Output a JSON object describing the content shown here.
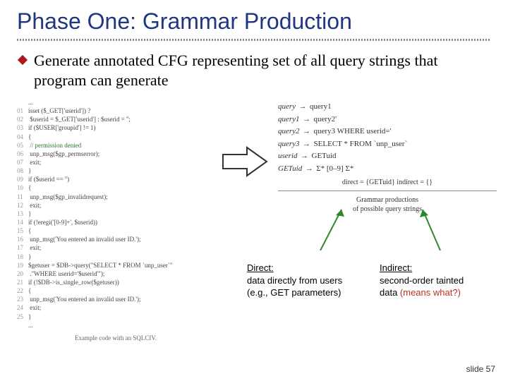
{
  "title": "Phase One: Grammar Production",
  "title_color": "#203780",
  "bullet": {
    "text": "Generate annotated CFG representing set of all query strings that program can generate",
    "icon_fill": "#b01818"
  },
  "code": {
    "lines": [
      {
        "n": "",
        "t": "..."
      },
      {
        "n": "01",
        "t": "isset ($_GET['userid']) ?"
      },
      {
        "n": "02",
        "t": "    $userid = $_GET['userid'] : $userid = '';"
      },
      {
        "n": "03",
        "t": "if ($USER['groupid'] != 1)"
      },
      {
        "n": "04",
        "t": "{"
      },
      {
        "n": "05",
        "t": "    // permission denied",
        "comment": true
      },
      {
        "n": "06",
        "t": "    unp_msg($gp_permserror);"
      },
      {
        "n": "07",
        "t": "    exit;"
      },
      {
        "n": "08",
        "t": "}"
      },
      {
        "n": "09",
        "t": "if ($userid == '')"
      },
      {
        "n": "10",
        "t": "{"
      },
      {
        "n": "11",
        "t": "    unp_msg($gp_invalidrequest);"
      },
      {
        "n": "12",
        "t": "    exit;"
      },
      {
        "n": "13",
        "t": "}"
      },
      {
        "n": "14",
        "t": "if (!eregi('[0-9]+', $userid))"
      },
      {
        "n": "15",
        "t": "{"
      },
      {
        "n": "16",
        "t": "    unp_msg('You entered an invalid user ID.');"
      },
      {
        "n": "17",
        "t": "    exit;"
      },
      {
        "n": "18",
        "t": "}"
      },
      {
        "n": "19",
        "t": "$getuser = $DB->query(\"SELECT * FROM `unp_user`\""
      },
      {
        "n": "20",
        "t": "               .\"WHERE userid='$userid'\");"
      },
      {
        "n": "21",
        "t": "if (!$DB->is_single_row($getuser))"
      },
      {
        "n": "22",
        "t": "{"
      },
      {
        "n": "23",
        "t": "    unp_msg('You entered an invalid user ID.');"
      },
      {
        "n": "24",
        "t": "    exit;"
      },
      {
        "n": "25",
        "t": "}"
      },
      {
        "n": "",
        "t": "..."
      }
    ],
    "caption": "Example code with an SQLCIV."
  },
  "grammar": {
    "rules": [
      {
        "lhs": "query",
        "rhs": "query1"
      },
      {
        "lhs": "query1",
        "rhs": "query2'"
      },
      {
        "lhs": "query2",
        "rhs": "query3 WHERE userid='"
      },
      {
        "lhs": "query3",
        "rhs": "SELECT * FROM `unp_user`"
      },
      {
        "lhs": "userid",
        "rhs": "GETuid"
      },
      {
        "lhs": "GETuid",
        "rhs": "Σ* [0–9] Σ*"
      }
    ],
    "direct_indirect": "direct = {GETuid}        indirect = {}",
    "caption_l1": "Grammar productions",
    "caption_l2": "of possible query strings"
  },
  "explain": {
    "direct": {
      "heading": "Direct:",
      "body1": "data directly from users",
      "body2": "(e.g., GET parameters)"
    },
    "indirect": {
      "heading": "Indirect:",
      "body1": "second-order tainted",
      "body2_pre": "data ",
      "body2_red": "(means what?)"
    }
  },
  "slide_number": "slide 57",
  "colors": {
    "arrow_stroke": "#333333",
    "callout_green": "#2a8a2a"
  }
}
